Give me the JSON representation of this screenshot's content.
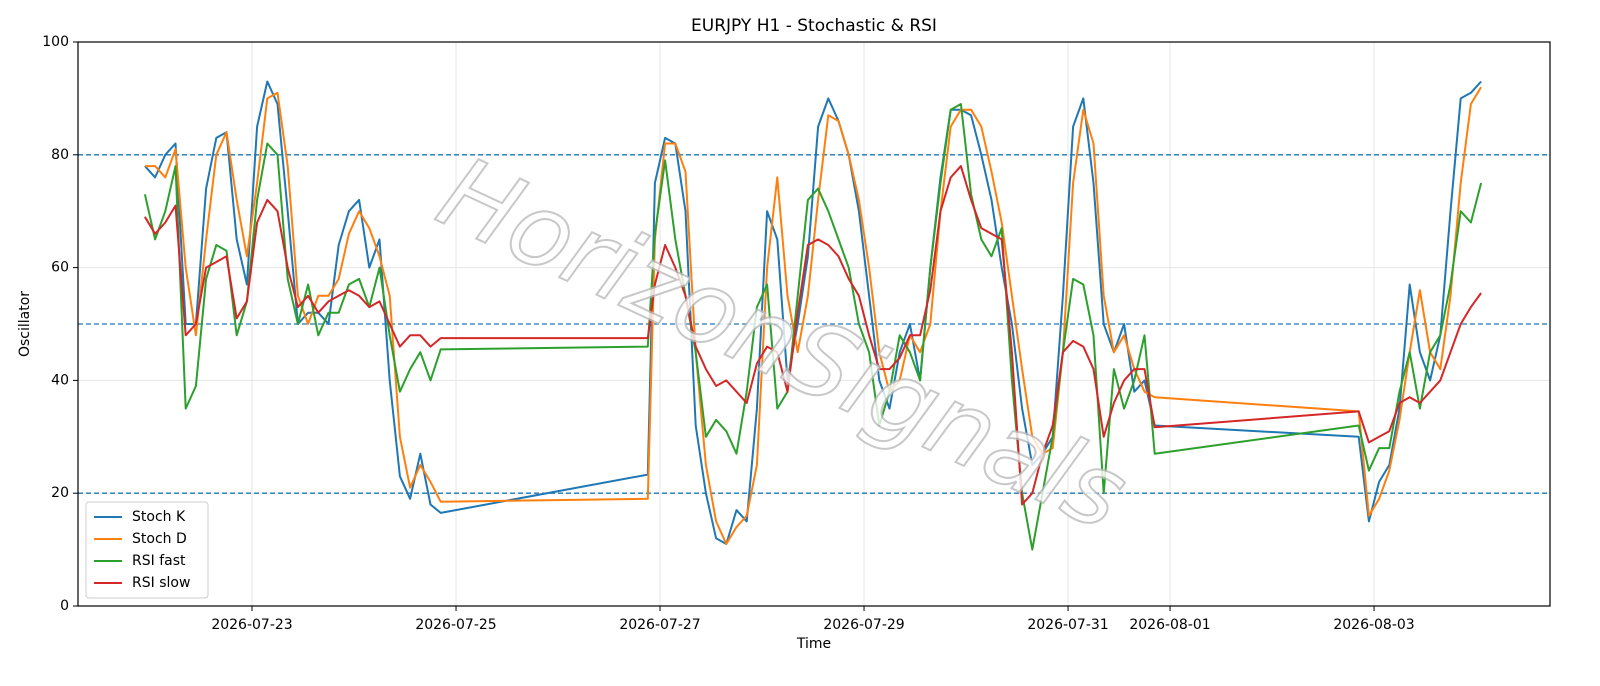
{
  "chart_data": {
    "type": "line",
    "title": "EURJPY H1 - Stochastic & RSI",
    "x_label": "Time",
    "y_label": "Oscillator",
    "watermark": "HorizonSignals",
    "x": [
      21.95,
      22.05,
      22.15,
      22.25,
      22.35,
      22.45,
      22.55,
      22.65,
      22.75,
      22.85,
      22.95,
      23.05,
      23.15,
      23.25,
      23.35,
      23.45,
      23.55,
      23.65,
      23.75,
      23.85,
      23.95,
      24.05,
      24.15,
      24.25,
      24.35,
      24.45,
      24.55,
      24.65,
      24.75,
      24.85,
      26.88,
      26.95,
      27.05,
      27.15,
      27.25,
      27.35,
      27.45,
      27.55,
      27.65,
      27.75,
      27.85,
      27.95,
      28.05,
      28.15,
      28.25,
      28.35,
      28.45,
      28.55,
      28.65,
      28.75,
      28.85,
      28.95,
      29.05,
      29.15,
      29.25,
      29.35,
      29.45,
      29.55,
      29.65,
      29.75,
      29.85,
      29.95,
      30.05,
      30.15,
      30.25,
      30.35,
      30.45,
      30.55,
      30.65,
      30.75,
      30.85,
      30.95,
      31.05,
      31.15,
      31.25,
      31.35,
      31.45,
      31.55,
      31.65,
      31.75,
      31.85,
      33.85,
      33.95,
      34.05,
      34.15,
      34.25,
      34.35,
      34.45,
      34.55,
      34.65,
      34.75,
      34.85,
      34.95,
      35.05
    ],
    "series": [
      {
        "name": "Stoch K",
        "color": "#1f77b4",
        "values": [
          78,
          76,
          80,
          82,
          50,
          50,
          74,
          83,
          84,
          65,
          57,
          85,
          93,
          89,
          70,
          50,
          52,
          52,
          50,
          64,
          70,
          72,
          60,
          65,
          40,
          23,
          19,
          27,
          18,
          16.5,
          23.3,
          75,
          83,
          82,
          70,
          32,
          20,
          12,
          11,
          17,
          15,
          35,
          70,
          65,
          40,
          50,
          62,
          85,
          90,
          86,
          80,
          70,
          55,
          40,
          35,
          45,
          50,
          40,
          60,
          76,
          88,
          88,
          87,
          80,
          72,
          60,
          50,
          35,
          25,
          27,
          30,
          55,
          85,
          90,
          75,
          50,
          45,
          50,
          38,
          40,
          32,
          30,
          15,
          22,
          25,
          35,
          57,
          45,
          40,
          48,
          70,
          90,
          91,
          93
        ]
      },
      {
        "name": "Stoch D",
        "color": "#ff7f0e",
        "values": [
          78,
          78,
          76,
          81,
          60,
          48,
          65,
          80,
          84,
          72,
          62,
          75,
          90,
          91,
          78,
          55,
          50,
          55,
          55,
          58,
          66,
          70,
          67,
          62,
          55,
          30,
          21,
          25,
          22,
          18.5,
          19,
          65,
          82,
          82,
          77,
          45,
          25,
          15,
          11,
          14,
          16,
          25,
          60,
          76,
          55,
          45,
          55,
          72,
          87,
          86,
          80,
          72,
          60,
          45,
          38,
          40,
          48,
          45,
          50,
          70,
          85,
          88,
          88,
          85,
          77,
          68,
          55,
          42,
          30,
          27,
          28,
          45,
          75,
          88,
          82,
          55,
          45,
          48,
          42,
          38,
          37,
          34.5,
          16,
          19,
          24,
          33,
          45,
          56,
          45,
          42,
          55,
          75,
          89,
          92
        ]
      },
      {
        "name": "RSI fast",
        "color": "#2ca02c",
        "values": [
          73,
          65,
          70,
          78,
          35,
          39,
          58,
          64,
          63,
          48,
          54,
          72,
          82,
          80,
          58,
          50,
          57,
          48,
          52,
          52,
          57,
          58,
          53,
          60,
          48,
          38,
          42,
          45,
          40,
          45.5,
          46,
          66,
          79,
          65,
          55,
          45,
          30,
          33,
          31,
          27,
          38,
          53,
          57,
          35,
          38,
          55,
          72,
          74,
          70,
          65,
          60,
          50,
          45,
          32,
          38,
          48,
          45,
          40,
          60,
          75,
          88,
          89,
          73,
          65,
          62,
          67,
          40,
          20,
          10,
          20,
          30,
          45,
          58,
          57,
          48,
          20,
          42,
          35,
          40,
          48,
          27,
          32,
          24,
          28,
          28,
          38,
          45,
          35,
          45,
          48,
          57,
          70,
          68,
          75
        ]
      },
      {
        "name": "RSI slow",
        "color": "#d62728",
        "values": [
          69,
          66,
          68,
          71,
          48,
          50,
          60,
          61,
          62,
          51,
          54,
          68,
          72,
          70,
          60,
          53,
          55,
          52,
          54,
          55,
          56,
          55,
          53,
          54,
          50,
          46,
          48,
          48,
          46,
          47.5,
          47.5,
          57,
          64,
          60,
          55,
          46,
          42,
          39,
          40,
          38,
          36,
          43,
          46,
          45,
          38,
          52,
          64,
          65,
          64,
          62,
          58,
          55,
          48,
          42,
          42,
          44,
          48,
          48,
          56,
          70,
          76,
          78,
          72,
          67,
          66,
          65,
          45,
          18,
          20,
          27,
          32,
          45,
          47,
          46,
          42,
          30,
          36,
          40,
          42,
          42,
          31.7,
          34.5,
          29,
          30,
          31,
          36,
          37,
          36,
          38,
          40,
          45,
          50,
          53,
          55.5
        ]
      }
    ],
    "xlim": [
      21.294,
      35.725
    ],
    "xticks": [
      {
        "value": 23,
        "label": "2026-07-23"
      },
      {
        "value": 25,
        "label": "2026-07-25"
      },
      {
        "value": 27,
        "label": "2026-07-27"
      },
      {
        "value": 29,
        "label": "2026-07-29"
      },
      {
        "value": 31,
        "label": "2026-07-31"
      },
      {
        "value": 32,
        "label": "2026-08-01"
      },
      {
        "value": 34,
        "label": "2026-08-03"
      }
    ],
    "ylim": [
      0,
      100
    ],
    "yticks": [
      0,
      20,
      40,
      60,
      80,
      100
    ],
    "hlines": [
      20,
      50,
      80
    ],
    "hline_color": "#1f77b4",
    "grid": true,
    "legend": "lower left"
  }
}
